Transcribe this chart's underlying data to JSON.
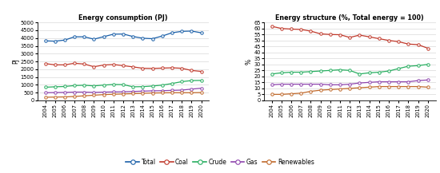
{
  "years": [
    2004,
    2005,
    2006,
    2007,
    2008,
    2009,
    2010,
    2011,
    2012,
    2013,
    2014,
    2015,
    2016,
    2017,
    2018,
    2019,
    2020
  ],
  "left_title": "Energy consumption (PJ)",
  "right_title": "Energy structure (%, Total energy = 100)",
  "left_ylabel": "PJ",
  "right_ylabel": "%",
  "left_ylim": [
    0,
    5000
  ],
  "right_ylim": [
    0,
    65
  ],
  "left_yticks": [
    0,
    500,
    1000,
    1500,
    2000,
    2500,
    3000,
    3500,
    4000,
    4500,
    5000
  ],
  "right_yticks": [
    0,
    5,
    10,
    15,
    20,
    25,
    30,
    35,
    40,
    45,
    50,
    55,
    60,
    65
  ],
  "total": [
    3820,
    3800,
    3870,
    4080,
    4080,
    3930,
    4090,
    4250,
    4260,
    4100,
    3990,
    3960,
    4130,
    4340,
    4430,
    4450,
    4340
  ],
  "coal": [
    2360,
    2280,
    2280,
    2380,
    2330,
    2160,
    2270,
    2300,
    2230,
    2150,
    2060,
    2050,
    2070,
    2090,
    2060,
    1920,
    1860
  ],
  "crude": [
    840,
    870,
    890,
    950,
    970,
    930,
    980,
    1020,
    1010,
    870,
    880,
    920,
    980,
    1080,
    1200,
    1270,
    1280
  ],
  "gas": [
    490,
    500,
    510,
    530,
    530,
    510,
    530,
    540,
    550,
    570,
    590,
    610,
    620,
    640,
    660,
    720,
    780
  ],
  "renewables": [
    200,
    210,
    220,
    250,
    290,
    330,
    370,
    390,
    410,
    430,
    450,
    470,
    480,
    490,
    490,
    490,
    500
  ],
  "coal_pct": [
    61.8,
    60.0,
    59.5,
    59.2,
    57.8,
    55.5,
    55.0,
    54.8,
    52.5,
    54.5,
    53.0,
    51.5,
    50.0,
    49.0,
    47.0,
    46.5,
    43.5
  ],
  "crude_pct": [
    22.0,
    23.0,
    23.5,
    23.5,
    24.0,
    24.5,
    25.0,
    25.5,
    25.0,
    22.0,
    23.0,
    23.5,
    24.5,
    26.5,
    28.5,
    29.0,
    30.0
  ],
  "gas_pct": [
    13.0,
    13.5,
    13.5,
    13.5,
    13.5,
    13.5,
    13.0,
    13.0,
    13.5,
    14.5,
    15.0,
    15.5,
    15.5,
    15.5,
    15.5,
    16.5,
    17.0
  ],
  "renewables_pct": [
    5.0,
    5.0,
    5.5,
    6.0,
    7.5,
    8.5,
    9.0,
    9.5,
    10.0,
    10.5,
    11.0,
    11.5,
    11.5,
    11.5,
    11.5,
    11.5,
    11.0
  ],
  "color_total": "#1a5fa8",
  "color_coal": "#c0392b",
  "color_crude": "#27ae60",
  "color_gas": "#8e44ad",
  "color_renewables": "#c0692b",
  "legend_labels": [
    "Total",
    "Coal",
    "Crude",
    "Gas",
    "Renewables"
  ]
}
